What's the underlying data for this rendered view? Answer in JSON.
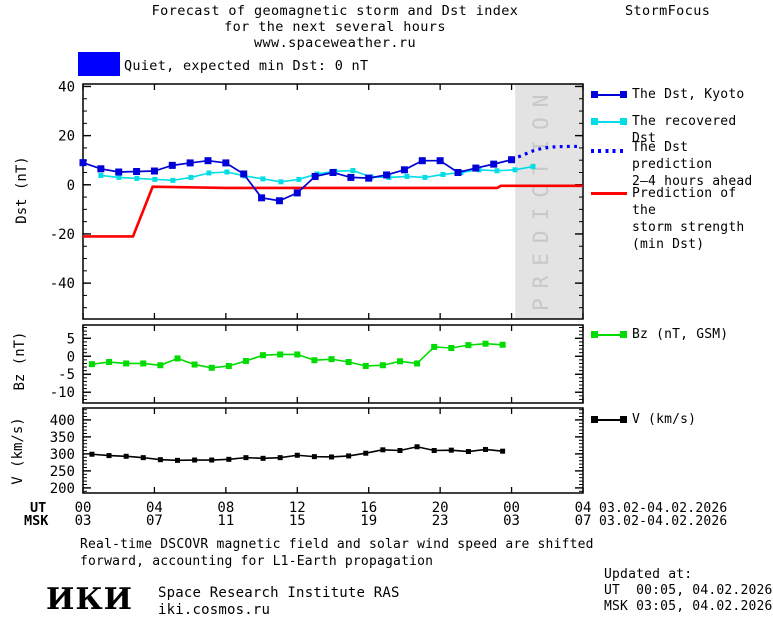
{
  "header": {
    "title_line1": "Forecast of geomagnetic storm and Dst index",
    "title_line2": "for the next several hours",
    "title_line3": "www.spaceweather.ru",
    "brand": "StormFocus"
  },
  "status": {
    "label": "Quiet, expected min Dst: 0 nT",
    "color": "#0000ff"
  },
  "colors": {
    "kyoto": "#0000d8",
    "recovered": "#00dde6",
    "prediction": "#0000ff",
    "storm": "#ff0000",
    "bz": "#00dc00",
    "v": "#000000",
    "prediction_region": "#e3e3e3",
    "watermark": "#c8c8c8"
  },
  "legend": {
    "kyoto": "The Dst, Kyoto",
    "recovered": "The recovered Dst",
    "prediction_line1": "The Dst prediction",
    "prediction_line2": "2–4 hours ahead",
    "storm_line1": "Prediction of the",
    "storm_line2": "storm strength",
    "storm_line3": "(min Dst)",
    "bz": "Bz (nT, GSM)",
    "v": "V (km/s)"
  },
  "axis_labels": {
    "dst": "Dst (nT)",
    "bz": "Bz (nT)",
    "v": "V (km/s)"
  },
  "xaxis": {
    "ut_prefix": "UT",
    "msk_prefix": "MSK",
    "ticks": [
      0,
      4,
      8,
      12,
      16,
      20,
      24,
      28
    ],
    "ut_labels": [
      "00",
      "04",
      "08",
      "12",
      "16",
      "20",
      "00",
      "04"
    ],
    "msk_labels": [
      "03",
      "07",
      "11",
      "15",
      "19",
      "23",
      "03",
      "07"
    ],
    "ut_date": "03.02-04.02.2026",
    "msk_date": "03.02-04.02.2026"
  },
  "chart_data": [
    {
      "id": "dst",
      "type": "line",
      "ylabel": "Dst (nT)",
      "xlim": [
        0,
        28
      ],
      "ylim": [
        -54.6,
        41
      ],
      "yticks": [
        40,
        20,
        0,
        -20,
        -40
      ],
      "y_minor_step": 5,
      "grid": false,
      "prediction_region": {
        "start": 24.2,
        "end": 28,
        "label": "PREDICTION"
      },
      "series": [
        {
          "name": "Prediction of the storm strength (min Dst)",
          "color_key": "storm",
          "width": 2.6,
          "points": [
            [
              0,
              -21
            ],
            [
              2.8,
              -21
            ],
            [
              3.9,
              -0.8
            ],
            [
              8,
              -1.3
            ],
            [
              23.2,
              -1.3
            ],
            [
              23.4,
              -0.4
            ],
            [
              28,
              -0.4
            ]
          ]
        },
        {
          "name": "The recovered Dst",
          "color_key": "recovered",
          "width": 1.6,
          "marker": 5,
          "x_range": [
            1,
            25.2
          ],
          "values": [
            3.8,
            3.0,
            2.6,
            2.2,
            1.8,
            3.0,
            4.8,
            5.2,
            3.6,
            2.4,
            1.2,
            2.2,
            4.4,
            5.5,
            5.8,
            3.2,
            3.0,
            3.4,
            3.0,
            4.2,
            5.0,
            6.1,
            5.7,
            6.1,
            7.4
          ]
        },
        {
          "name": "The Dst, Kyoto",
          "color_key": "kyoto",
          "width": 1.7,
          "marker": 7,
          "x_range": [
            0,
            24
          ],
          "values": [
            9.0,
            6.5,
            5.2,
            5.4,
            5.6,
            7.9,
            8.9,
            9.8,
            8.9,
            4.4,
            -5.3,
            -6.5,
            -3.3,
            3.4,
            5.0,
            3.0,
            2.7,
            4.0,
            6.1,
            9.8,
            9.8,
            5.0,
            6.8,
            8.4,
            10.2
          ]
        },
        {
          "name": "The Dst prediction 2-4 hours ahead",
          "color_key": "prediction",
          "style": "dotted",
          "width": 3.2,
          "x": [
            24,
            24.6,
            25.2,
            25.8,
            26.5,
            27.2,
            27.8
          ],
          "values": [
            10.2,
            12.0,
            13.8,
            15.0,
            15.5,
            15.6,
            15.6
          ]
        }
      ]
    },
    {
      "id": "bz",
      "type": "line",
      "ylabel": "Bz (nT)",
      "xlim": [
        0,
        28
      ],
      "ylim": [
        -13,
        8.7
      ],
      "yticks": [
        5,
        0,
        -5,
        -10
      ],
      "y_minor_step": 1,
      "grid": false,
      "series": [
        {
          "name": "Bz (nT, GSM)",
          "color_key": "bz",
          "width": 1.6,
          "marker": 6,
          "x_range": [
            0.5,
            23.5
          ],
          "values": [
            -2.2,
            -1.6,
            -2.0,
            -2.0,
            -2.5,
            -0.6,
            -2.3,
            -3.2,
            -2.7,
            -1.3,
            0.3,
            0.5,
            0.5,
            -1.1,
            -0.8,
            -1.6,
            -2.7,
            -2.5,
            -1.4,
            -2.0,
            2.6,
            2.3,
            3.1,
            3.5,
            3.2
          ]
        }
      ]
    },
    {
      "id": "v",
      "type": "line",
      "ylabel": "V (km/s)",
      "xlim": [
        0,
        28
      ],
      "ylim": [
        185,
        435
      ],
      "yticks": [
        400,
        350,
        300,
        250,
        200
      ],
      "y_minor_step": 10,
      "grid": false,
      "series": [
        {
          "name": "V (km/s)",
          "color_key": "v",
          "width": 1.6,
          "marker": 5,
          "x_range": [
            0.5,
            23.5
          ],
          "values": [
            299,
            295,
            293,
            289,
            283,
            281,
            282,
            282,
            284,
            289,
            287,
            289,
            296,
            292,
            291,
            294,
            302,
            312,
            310,
            321,
            310,
            311,
            307,
            313,
            308
          ]
        }
      ]
    }
  ],
  "footer": {
    "note_line1": "Real-time DSCOVR magnetic field and solar wind speed are shifted",
    "note_line2": "forward, accounting for L1-Earth propagation",
    "logo": "ИКИ",
    "org": "Space Research Institute RAS",
    "site": "iki.cosmos.ru",
    "updated_label": "Updated at:",
    "updated_ut": "UT  00:05, 04.02.2026",
    "updated_msk": "MSK 03:05, 04.02.2026"
  }
}
